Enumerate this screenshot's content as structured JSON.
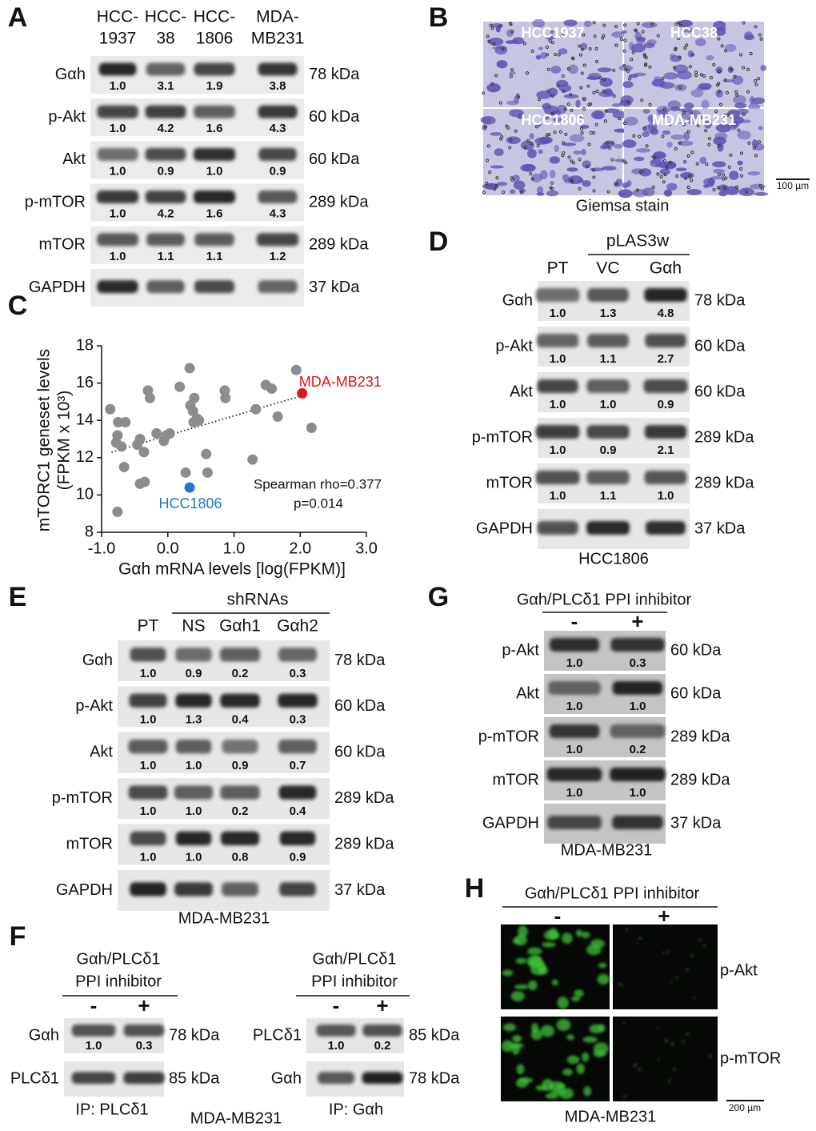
{
  "figure": {
    "A": {
      "letter": "A",
      "lanes": [
        [
          "HCC-",
          "1937"
        ],
        [
          "HCC-",
          "38"
        ],
        [
          "HCC-",
          "1806"
        ],
        [
          "MDA-",
          "MB231"
        ]
      ],
      "rows": [
        {
          "name": "Gαh",
          "kda": "78 kDa",
          "values": [
            "1.0",
            "3.1",
            "1.9",
            "3.8"
          ]
        },
        {
          "name": "p-Akt",
          "kda": "60 kDa",
          "values": [
            "1.0",
            "4.2",
            "1.6",
            "4.3"
          ]
        },
        {
          "name": "Akt",
          "kda": "60 kDa",
          "values": [
            "1.0",
            "0.9",
            "1.0",
            "0.9"
          ]
        },
        {
          "name": "p-mTOR",
          "kda": "289 kDa",
          "values": [
            "1.0",
            "4.2",
            "1.6",
            "4.3"
          ]
        },
        {
          "name": "mTOR",
          "kda": "289 kDa",
          "values": [
            "1.0",
            "1.1",
            "1.1",
            "1.2"
          ]
        },
        {
          "name": "GAPDH",
          "kda": "37 kDa"
        }
      ]
    },
    "B": {
      "letter": "B",
      "images": [
        "HCC1937",
        "HCC38",
        "HCC1806",
        "MDA-MB231"
      ],
      "scale": "100 µm",
      "caption": "Giemsa stain"
    },
    "C": {
      "letter": "C"
    },
    "D": {
      "letter": "D",
      "group": "pLAS3w",
      "lanes": [
        "PT",
        "VC",
        "Gαh"
      ],
      "rows": [
        {
          "name": "Gαh",
          "kda": "78 kDa",
          "values": [
            "1.0",
            "1.3",
            "4.8"
          ]
        },
        {
          "name": "p-Akt",
          "kda": "60 kDa",
          "values": [
            "1.0",
            "1.1",
            "2.7"
          ]
        },
        {
          "name": "Akt",
          "kda": "60 kDa",
          "values": [
            "1.0",
            "1.0",
            "0.9"
          ]
        },
        {
          "name": "p-mTOR",
          "kda": "289 kDa",
          "values": [
            "1.0",
            "0.9",
            "2.1"
          ]
        },
        {
          "name": "mTOR",
          "kda": "289 kDa",
          "values": [
            "1.0",
            "1.1",
            "1.0"
          ]
        },
        {
          "name": "GAPDH",
          "kda": "37 kDa"
        }
      ],
      "footer": "HCC1806"
    },
    "E": {
      "letter": "E",
      "group": "shRNAs",
      "lanes": [
        "PT",
        "NS",
        "Gαh1",
        "Gαh2"
      ],
      "rows": [
        {
          "name": "Gαh",
          "kda": "78 kDa",
          "values": [
            "1.0",
            "0.9",
            "0.2",
            "0.3"
          ]
        },
        {
          "name": "p-Akt",
          "kda": "60 kDa",
          "values": [
            "1.0",
            "1.3",
            "0.4",
            "0.3"
          ]
        },
        {
          "name": "Akt",
          "kda": "60 kDa",
          "values": [
            "1.0",
            "1.0",
            "0.9",
            "0.7"
          ]
        },
        {
          "name": "p-mTOR",
          "kda": "289 kDa",
          "values": [
            "1.0",
            "1.0",
            "0.2",
            "0.4"
          ]
        },
        {
          "name": "mTOR",
          "kda": "289 kDa",
          "values": [
            "1.0",
            "1.0",
            "0.8",
            "0.9"
          ]
        },
        {
          "name": "GAPDH",
          "kda": "37 kDa"
        }
      ],
      "footer": "MDA-MB231"
    },
    "F": {
      "letter": "F",
      "caption": "MDA-MB231",
      "blots": [
        {
          "header": [
            "Gαh/PLCδ1",
            "PPI inhibitor"
          ],
          "lanes": [
            "-",
            "+"
          ],
          "rows": [
            {
              "name": "Gαh",
              "kda": "78 kDa",
              "values": [
                "1.0",
                "0.3"
              ]
            },
            {
              "name": "PLCδ1",
              "kda": "85 kDa"
            }
          ],
          "footer": "IP: PLCδ1"
        },
        {
          "header": [
            "Gαh/PLCδ1",
            "PPI inhibitor"
          ],
          "lanes": [
            "-",
            "+"
          ],
          "rows": [
            {
              "name": "PLCδ1",
              "kda": "85 kDa",
              "values": [
                "1.0",
                "0.2"
              ]
            },
            {
              "name": "Gαh",
              "kda": "78 kDa"
            }
          ],
          "footer": "IP: Gαh"
        }
      ]
    },
    "G": {
      "letter": "G",
      "header": "Gαh/PLCδ1 PPI inhibitor",
      "lanes": [
        "-",
        "+"
      ],
      "rows": [
        {
          "name": "p-Akt",
          "kda": "60 kDa",
          "values": [
            "1.0",
            "0.3"
          ]
        },
        {
          "name": "Akt",
          "kda": "60 kDa",
          "values": [
            "1.0",
            "1.0"
          ]
        },
        {
          "name": "p-mTOR",
          "kda": "289 kDa",
          "values": [
            "1.0",
            "0.2"
          ]
        },
        {
          "name": "mTOR",
          "kda": "289 kDa",
          "values": [
            "1.0",
            "1.0"
          ]
        },
        {
          "name": "GAPDH",
          "kda": "37 kDa"
        }
      ],
      "footer": "MDA-MB231"
    },
    "H": {
      "letter": "H",
      "header": "Gαh/PLCδ1 PPI inhibitor",
      "lanes": [
        "-",
        "+"
      ],
      "rows": [
        "p-Akt",
        "p-mTOR"
      ],
      "scale": "200 µm",
      "footer": "MDA-MB231"
    }
  },
  "chart_data": {
    "type": "scatter",
    "xlabel": "Gαh mRNA levels [log(FPKM)]",
    "ylabel": [
      "mTORC1 geneset levels",
      "(FPKM x 10³)"
    ],
    "xlim": [
      -1,
      3
    ],
    "ylim": [
      8,
      18
    ],
    "xticks": [
      {
        "value": -1,
        "label": "-1.0"
      },
      {
        "value": 0,
        "label": "0.0"
      },
      {
        "value": 1,
        "label": "1.0"
      },
      {
        "value": 2,
        "label": "2.0"
      },
      {
        "value": 3,
        "label": "3.0"
      }
    ],
    "yticks": [
      8,
      10,
      12,
      14,
      16,
      18
    ],
    "points": {
      "color": "#8c8c8c",
      "x": [
        -0.87,
        -0.75,
        -0.76,
        -0.64,
        -0.78,
        -0.7,
        -0.66,
        -0.76,
        -0.46,
        -0.42,
        -0.36,
        -0.42,
        -0.35,
        -0.3,
        -0.27,
        -0.17,
        -0.06,
        -0.02,
        0.03,
        0.18,
        0.27,
        0.33,
        0.39,
        0.38,
        0.4,
        0.44,
        0.34,
        0.47,
        0.58,
        0.6,
        0.86,
        0.87,
        1.28,
        1.33,
        1.48,
        1.57,
        1.66,
        1.94,
        2.17
      ],
      "y": [
        14.6,
        13.9,
        13.2,
        13.9,
        12.8,
        12.6,
        11.5,
        9.1,
        12.7,
        13.0,
        12.3,
        10.6,
        10.7,
        15.6,
        15.2,
        13.3,
        12.9,
        13.2,
        13.3,
        15.8,
        11.2,
        16.8,
        13.9,
        14.5,
        15.2,
        14.1,
        14.8,
        14.0,
        12.2,
        11.2,
        15.6,
        15.2,
        11.9,
        14.6,
        15.9,
        15.7,
        14.2,
        16.7,
        13.6
      ]
    },
    "highlights": [
      {
        "name": "MDA-MB231",
        "color": "#d7191c",
        "x": 2.03,
        "y": 15.45
      },
      {
        "name": "HCC1806",
        "color": "#1f78c8",
        "x": 0.33,
        "y": 10.4
      }
    ],
    "trendline": {
      "x": [
        -0.85,
        2.1
      ],
      "y": [
        12.3,
        15.4
      ]
    },
    "annotations": [
      "Spearman rho=0.377",
      "p=0.014"
    ]
  }
}
